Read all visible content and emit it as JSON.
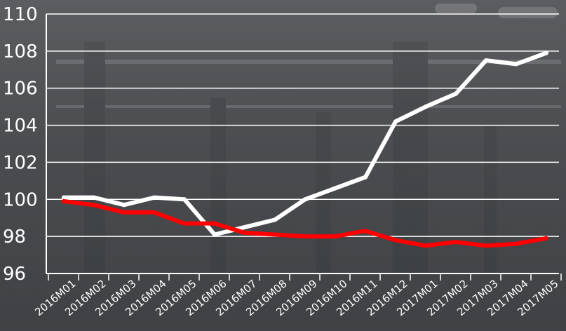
{
  "chart_data": {
    "type": "line",
    "title": "",
    "xlabel": "",
    "ylabel": "",
    "ylim": [
      96,
      110
    ],
    "yticks": [
      96,
      98,
      100,
      102,
      104,
      106,
      108,
      110
    ],
    "grid": "horizontal",
    "x": [
      "2016M01",
      "2016M02",
      "2016M03",
      "2016M04",
      "2016M05",
      "2016M06",
      "2016M07",
      "2016M08",
      "2016M09",
      "2016M10",
      "2016M11",
      "2016M12",
      "2017M01",
      "2017M02",
      "2017M03",
      "2017M04",
      "2017M05"
    ],
    "series": [
      {
        "color": "#ffffff",
        "x": [
          "2016M01",
          "2016M02",
          "2016M03",
          "2016M04",
          "2016M05",
          "2016M06",
          "2016M07",
          "2016M08",
          "2016M09",
          "2016M10",
          "2016M11",
          "2016M12",
          "2017M01",
          "2017M02",
          "2017M03",
          "2017M04",
          "2017M05"
        ],
        "values": [
          100.1,
          100.1,
          99.7,
          100.1,
          100.0,
          98.1,
          98.5,
          98.9,
          100.0,
          100.6,
          101.2,
          104.2,
          105.0,
          105.7,
          107.5,
          107.3,
          107.9
        ]
      },
      {
        "color": "#ff0000",
        "x": [
          "2016M01",
          "2016M02",
          "2016M03",
          "2016M04",
          "2016M05",
          "2016M06",
          "2016M07",
          "2016M08",
          "2016M09",
          "2016M10",
          "2016M11",
          "2016M12",
          "2017M01",
          "2017M02",
          "2017M03",
          "2017M04",
          "2017M05"
        ],
        "values": [
          99.9,
          99.7,
          99.3,
          99.3,
          98.7,
          98.7,
          98.2,
          98.1,
          98.0,
          98.0,
          98.3,
          97.8,
          97.5,
          97.7,
          97.5,
          97.6,
          97.9
        ]
      }
    ]
  }
}
